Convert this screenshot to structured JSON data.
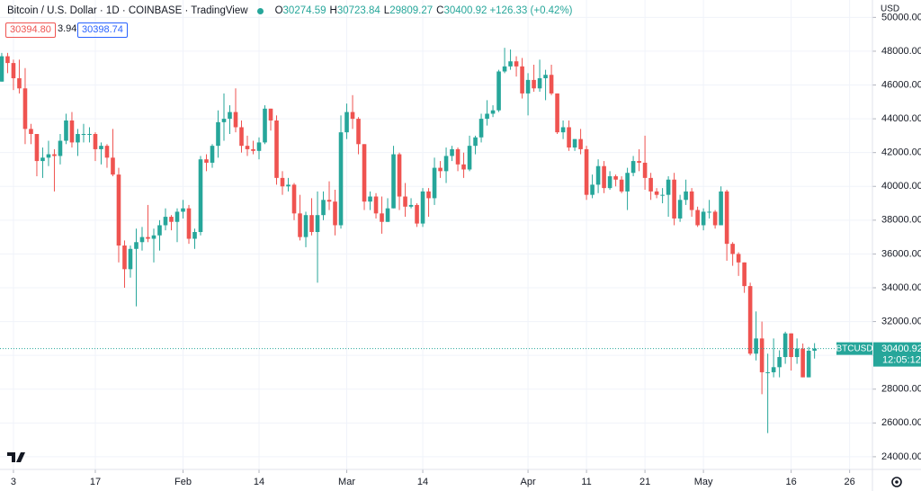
{
  "header": {
    "symbol": "Bitcoin / U.S. Dollar · 1D · COINBASE · TradingView",
    "ohlc_labels": [
      "O",
      "H",
      "L",
      "C"
    ],
    "change": "+126.33 (+0.42%)",
    "bid": "30394.80",
    "spread": "3.94",
    "ask": "30398.74",
    "currency": "USD",
    "ticker": "BTCUSD",
    "countdown": "12:05:12"
  },
  "chart_data": {
    "type": "candlestick",
    "x": [
      1,
      2,
      3,
      4,
      5,
      6,
      7,
      8,
      9,
      10,
      11,
      12,
      13,
      14,
      15,
      16,
      17,
      18,
      19,
      20,
      21,
      22,
      23,
      24,
      25,
      26,
      27,
      28,
      29,
      30,
      31,
      32,
      33,
      34,
      35,
      36,
      37,
      38,
      39,
      40,
      41,
      42,
      43,
      44,
      45,
      46,
      47,
      48,
      49,
      50,
      51,
      52,
      53,
      54,
      55,
      56,
      57,
      58,
      59,
      60,
      61,
      62,
      63,
      64,
      65,
      66,
      67,
      68,
      69,
      70,
      71,
      72,
      73,
      74,
      75,
      76,
      77,
      78,
      79,
      80,
      81,
      82,
      83,
      84,
      85,
      86,
      87,
      88,
      89,
      90,
      91,
      92,
      93,
      94,
      95,
      96,
      97,
      98,
      99,
      100,
      101,
      102,
      103,
      104,
      105,
      106,
      107,
      108,
      109,
      110,
      111,
      112,
      113,
      114,
      115,
      116,
      117,
      118,
      119,
      120,
      121,
      122,
      123,
      124,
      125,
      126,
      127,
      128,
      129,
      130,
      131,
      132,
      133,
      134,
      135,
      136,
      137,
      138,
      139,
      140
    ],
    "open": [
      46200,
      47700,
      47300,
      46400,
      45800,
      43400,
      43100,
      41500,
      41700,
      41900,
      41800,
      42700,
      43900,
      42600,
      43100,
      43100,
      43100,
      42200,
      42400,
      41700,
      40700,
      36500,
      35100,
      36300,
      36700,
      37000,
      36900,
      37100,
      37700,
      38200,
      37900,
      38500,
      38700,
      36900,
      37300,
      41600,
      41400,
      42400,
      43800,
      44000,
      44400,
      43500,
      42400,
      42200,
      42100,
      42600,
      44600,
      43900,
      40500,
      40000,
      40100,
      38400,
      37000,
      38300,
      37300,
      38300,
      39200,
      39100,
      37700,
      43200,
      44400,
      44000,
      42500,
      39100,
      39400,
      38400,
      37900,
      38700,
      41900,
      39400,
      38800,
      38900,
      37800,
      39700,
      39300,
      41100,
      40900,
      41800,
      42200,
      41300,
      41000,
      42400,
      42900,
      44000,
      44300,
      44500,
      46800,
      47100,
      47400,
      47100,
      45500,
      46300,
      45800,
      46400,
      46600,
      45500,
      43200,
      43500,
      42300,
      42800,
      42200,
      39500,
      40100,
      41200,
      39900,
      40600,
      40400,
      39700,
      40800,
      41500,
      41400,
      40500,
      39700,
      39500,
      39500,
      40400,
      38100,
      39200,
      39700,
      38600,
      37700,
      38500,
      38500,
      37700,
      39700,
      36600,
      36000,
      35500,
      34100,
      30100,
      31000,
      29000,
      29000,
      29300,
      29900,
      31300,
      29900,
      30400,
      28700,
      30274.59
    ],
    "high": [
      47900,
      47900,
      47500,
      47500,
      47000,
      43700,
      43100,
      42300,
      42700,
      42200,
      43100,
      44300,
      44400,
      43400,
      43700,
      43500,
      43200,
      42600,
      42500,
      43400,
      41100,
      36800,
      36500,
      37500,
      37600,
      38900,
      37500,
      38000,
      38700,
      38300,
      38700,
      39200,
      38900,
      37500,
      41800,
      41900,
      42500,
      44500,
      45500,
      44800,
      45800,
      43900,
      43000,
      42700,
      42900,
      44800,
      44600,
      44200,
      40900,
      40500,
      40200,
      39500,
      38500,
      39300,
      39700,
      39700,
      40300,
      39800,
      44200,
      44900,
      45400,
      44100,
      42500,
      39700,
      39600,
      39400,
      39300,
      42400,
      42000,
      40200,
      39300,
      39000,
      39900,
      39900,
      41700,
      41500,
      42300,
      42400,
      42300,
      42000,
      43000,
      43000,
      44300,
      45100,
      44800,
      46900,
      48200,
      48100,
      47700,
      47600,
      46700,
      47200,
      47500,
      46900,
      47200,
      45500,
      43900,
      43900,
      42800,
      43400,
      42400,
      40700,
      41600,
      41500,
      40900,
      40700,
      40600,
      41100,
      41800,
      42200,
      43000,
      40800,
      39900,
      39900,
      40600,
      40800,
      39500,
      40400,
      39900,
      38800,
      38700,
      39200,
      38600,
      40000,
      39800,
      36700,
      36100,
      35500,
      34300,
      32600,
      32000,
      30100,
      31000,
      30300,
      31400,
      31300,
      31000,
      30700,
      30500,
      30723.84
    ],
    "low": [
      46200,
      46700,
      45700,
      45500,
      42500,
      42500,
      40600,
      40500,
      41200,
      39700,
      41300,
      42500,
      42300,
      41800,
      42600,
      42600,
      41500,
      41300,
      41100,
      40600,
      35500,
      34000,
      34600,
      32900,
      36200,
      36700,
      35500,
      36200,
      37400,
      37400,
      36700,
      38100,
      36600,
      36300,
      37100,
      40900,
      41100,
      41700,
      42700,
      43100,
      43200,
      42000,
      41800,
      41900,
      41600,
      42500,
      43300,
      40100,
      39500,
      39700,
      38000,
      36800,
      36400,
      37100,
      34300,
      38000,
      38600,
      37100,
      37500,
      42800,
      43400,
      41900,
      38600,
      38600,
      38100,
      37200,
      37900,
      38700,
      38600,
      38200,
      38700,
      37600,
      37600,
      38200,
      38900,
      40500,
      40200,
      41500,
      40900,
      40500,
      40900,
      41900,
      42600,
      43600,
      44100,
      44400,
      46700,
      46900,
      46500,
      45200,
      44200,
      45600,
      45600,
      45100,
      45400,
      43100,
      42800,
      42100,
      42100,
      41900,
      39200,
      39300,
      39600,
      39600,
      39800,
      40000,
      39600,
      38600,
      40600,
      40900,
      39800,
      39200,
      39300,
      39000,
      38200,
      37700,
      37900,
      38900,
      38200,
      37600,
      37400,
      38100,
      37500,
      37700,
      35600,
      35300,
      34700,
      33700,
      30000,
      29700,
      27700,
      25400,
      28700,
      28700,
      29500,
      29100,
      29500,
      28700,
      28700,
      29809.27
    ],
    "close": [
      47700,
      47300,
      46400,
      45800,
      43400,
      43100,
      41500,
      41700,
      41900,
      41800,
      42700,
      43900,
      42600,
      43100,
      43100,
      43100,
      42200,
      42400,
      41700,
      40700,
      36500,
      35100,
      36300,
      36700,
      37000,
      36900,
      37100,
      37700,
      38200,
      37900,
      38500,
      38700,
      36900,
      37300,
      41600,
      41400,
      42400,
      43800,
      44000,
      44400,
      43500,
      42400,
      42200,
      42100,
      42600,
      44600,
      43900,
      40500,
      40000,
      40100,
      38400,
      37000,
      38300,
      37300,
      38300,
      39200,
      39100,
      37700,
      43200,
      44400,
      44000,
      42500,
      39100,
      39400,
      38400,
      37900,
      38700,
      41900,
      39400,
      38800,
      38900,
      37800,
      39700,
      39300,
      41100,
      40900,
      41800,
      42200,
      41300,
      41000,
      42400,
      42900,
      44000,
      44300,
      44500,
      46800,
      47100,
      47400,
      47100,
      45500,
      46300,
      45800,
      46400,
      46600,
      45500,
      43200,
      43500,
      42300,
      42800,
      42200,
      39500,
      40100,
      41200,
      39900,
      40600,
      40400,
      39700,
      40800,
      41500,
      41400,
      40500,
      39700,
      39500,
      39500,
      40400,
      38100,
      39200,
      39700,
      38600,
      37700,
      38500,
      38500,
      37700,
      39700,
      36600,
      36000,
      35500,
      34100,
      30100,
      31000,
      29000,
      29000,
      29300,
      29900,
      31300,
      29900,
      30400,
      28700,
      30274.59,
      30400.92
    ],
    "up_color": "#26a69a",
    "down_color": "#ef5350",
    "xlim": [
      0.7,
      149.9
    ],
    "ylim": [
      23250,
      51030
    ],
    "xticks": [
      {
        "value": 3,
        "label": "3"
      },
      {
        "value": 17,
        "label": "17"
      },
      {
        "value": 32,
        "label": "Feb"
      },
      {
        "value": 45,
        "label": "14"
      },
      {
        "value": 60,
        "label": "Mar"
      },
      {
        "value": 73,
        "label": "14"
      },
      {
        "value": 91,
        "label": "Apr"
      },
      {
        "value": 101,
        "label": "11"
      },
      {
        "value": 111,
        "label": "21"
      },
      {
        "value": 121,
        "label": "May"
      },
      {
        "value": 136,
        "label": "16"
      },
      {
        "value": 146,
        "label": "26"
      }
    ],
    "yticks": [
      {
        "value": 24000,
        "label": "24000.00"
      },
      {
        "value": 26000,
        "label": "26000.00"
      },
      {
        "value": 28000,
        "label": "28000.00"
      },
      {
        "value": 30000,
        "label": "30000.00"
      },
      {
        "value": 32000,
        "label": "32000.00"
      },
      {
        "value": 34000,
        "label": "34000.00"
      },
      {
        "value": 36000,
        "label": "36000.00"
      },
      {
        "value": 38000,
        "label": "38000.00"
      },
      {
        "value": 40000,
        "label": "40000.00"
      },
      {
        "value": 42000,
        "label": "42000.00"
      },
      {
        "value": 44000,
        "label": "44000.00"
      },
      {
        "value": 46000,
        "label": "46000.00"
      },
      {
        "value": 48000,
        "label": "48000.00"
      },
      {
        "value": 50000,
        "label": "50000.00"
      }
    ],
    "grid": true
  }
}
